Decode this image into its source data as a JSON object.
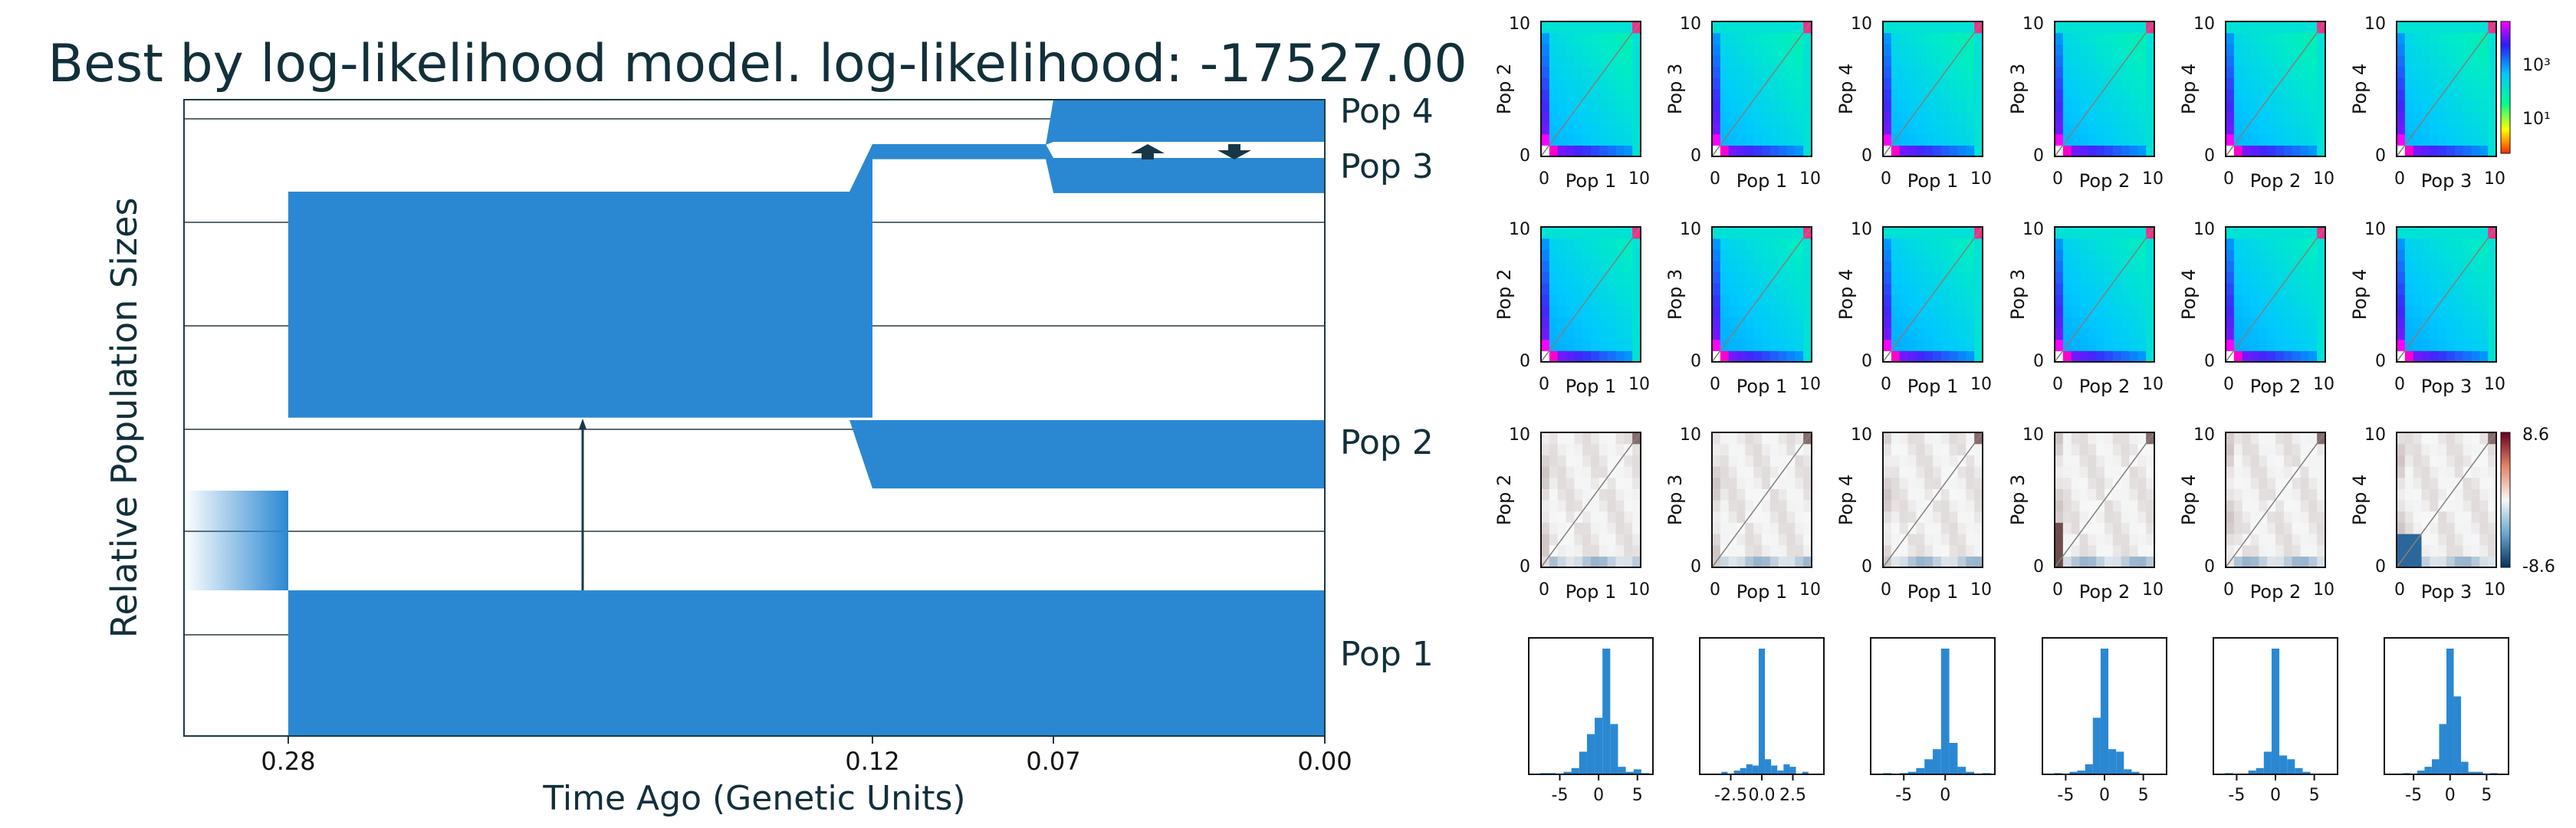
{
  "title": "Best by log-likelihood model. log-likelihood: -17527.00",
  "colors": {
    "pop_fill": "#2a88d2",
    "grid": "#5f6b6e",
    "frame": "#1d3a48",
    "arrow": "#163846",
    "title_text": "#12303a",
    "diag": "#a0a0a0"
  },
  "chart_data": [
    {
      "type": "area",
      "title": "Best by log-likelihood model. log-likelihood: -17527.00",
      "xlabel": "Time Ago (Genetic Units)",
      "ylabel": "Relative Population Sizes",
      "x_ticks": [
        0.28,
        0.12,
        0.07,
        0.0
      ],
      "x_tick_labels": [
        "0.28",
        "0.12",
        "0.07",
        "0.00"
      ],
      "x_direction": "reversed",
      "grid": "horizontal",
      "populations": [
        {
          "name": "Pop 1",
          "segments": [
            {
              "t_start": 0.28,
              "t_end": 0.0,
              "size": 1.45
            }
          ]
        },
        {
          "name": "Pop 2",
          "segments": [
            {
              "t_start": 0.28,
              "t_end": 0.12,
              "size": 0.05
            },
            {
              "t_start": 0.12,
              "t_end": 0.0,
              "size": 0.68
            }
          ]
        },
        {
          "name": "Pop 3",
          "segments": [
            {
              "t_start": 0.28,
              "t_end": 0.12,
              "size": 2.25
            },
            {
              "t_start": 0.12,
              "t_end": 0.07,
              "size": 0.15
            },
            {
              "t_start": 0.07,
              "t_end": 0.0,
              "size": 0.35
            }
          ]
        },
        {
          "name": "Pop 4",
          "segments": [
            {
              "t_start": 0.07,
              "t_end": 0.0,
              "size": 0.45
            }
          ]
        }
      ],
      "ancestral": {
        "t_start": 0.33,
        "t_end": 0.28,
        "size": 1.0
      },
      "migrations": [
        {
          "from": "Pop 1",
          "to": "Pop 2",
          "t_start": 0.28,
          "t_end": 0.12
        },
        {
          "from": "Pop 3",
          "to": "Pop 4",
          "t_start": 0.07,
          "t_end": 0.0
        },
        {
          "from": "Pop 4",
          "to": "Pop 3",
          "t_start": 0.07,
          "t_end": 0.0
        }
      ]
    },
    {
      "type": "heatmap",
      "name": "observed sfs",
      "panels": [
        {
          "xlabel": "Pop 1",
          "ylabel": "Pop 2"
        },
        {
          "xlabel": "Pop 1",
          "ylabel": "Pop 3"
        },
        {
          "xlabel": "Pop 1",
          "ylabel": "Pop 4"
        },
        {
          "xlabel": "Pop 2",
          "ylabel": "Pop 3"
        },
        {
          "xlabel": "Pop 2",
          "ylabel": "Pop 4"
        },
        {
          "xlabel": "Pop 3",
          "ylabel": "Pop 4"
        }
      ],
      "axis_range": [
        0,
        10
      ],
      "tick_labels": [
        "0",
        "10"
      ],
      "colorbar": {
        "scale": "log",
        "tick_labels": [
          "10³",
          "10¹"
        ]
      }
    },
    {
      "type": "heatmap",
      "name": "model sfs",
      "panels": [
        {
          "xlabel": "Pop 1",
          "ylabel": "Pop 2"
        },
        {
          "xlabel": "Pop 1",
          "ylabel": "Pop 3"
        },
        {
          "xlabel": "Pop 1",
          "ylabel": "Pop 4"
        },
        {
          "xlabel": "Pop 2",
          "ylabel": "Pop 3"
        },
        {
          "xlabel": "Pop 2",
          "ylabel": "Pop 4"
        },
        {
          "xlabel": "Pop 3",
          "ylabel": "Pop 4"
        }
      ],
      "axis_range": [
        0,
        10
      ],
      "tick_labels": [
        "0",
        "10"
      ]
    },
    {
      "type": "heatmap",
      "name": "residuals",
      "panels": [
        {
          "xlabel": "Pop 1",
          "ylabel": "Pop 2"
        },
        {
          "xlabel": "Pop 1",
          "ylabel": "Pop 3"
        },
        {
          "xlabel": "Pop 1",
          "ylabel": "Pop 4"
        },
        {
          "xlabel": "Pop 2",
          "ylabel": "Pop 3"
        },
        {
          "xlabel": "Pop 2",
          "ylabel": "Pop 4"
        },
        {
          "xlabel": "Pop 3",
          "ylabel": "Pop 4"
        }
      ],
      "axis_range": [
        0,
        10
      ],
      "tick_labels": [
        "0",
        "10"
      ],
      "colorbar": {
        "scale": "linear",
        "range": [
          -8.6,
          8.6
        ],
        "tick_labels": [
          "8.6",
          "-8.6"
        ]
      }
    },
    {
      "type": "bar",
      "name": "residual histograms",
      "panels": [
        {
          "ticks": [
            "-5",
            "0",
            "5"
          ],
          "xlim": [
            -9,
            7
          ],
          "bins": [
            [
              -7,
              0.01
            ],
            [
              -6,
              0.01
            ],
            [
              -4,
              0.02
            ],
            [
              -3,
              0.05
            ],
            [
              -2,
              0.18
            ],
            [
              -1,
              0.32
            ],
            [
              0,
              0.45
            ],
            [
              1,
              1.0
            ],
            [
              2,
              0.4
            ],
            [
              3,
              0.06
            ],
            [
              4,
              0.02
            ],
            [
              5,
              0.04
            ],
            [
              6,
              0.01
            ]
          ]
        },
        {
          "ticks": [
            "-2.5",
            "0.0",
            "2.5"
          ],
          "xlim": [
            -5,
            5
          ],
          "bins": [
            [
              -3.0,
              0.02
            ],
            [
              -2.0,
              0.03
            ],
            [
              -1.5,
              0.05
            ],
            [
              -1.0,
              0.08
            ],
            [
              -0.5,
              0.07
            ],
            [
              0.0,
              1.0
            ],
            [
              0.5,
              0.12
            ],
            [
              1.0,
              0.07
            ],
            [
              1.5,
              0.03
            ],
            [
              2.0,
              0.08
            ],
            [
              2.5,
              0.06
            ],
            [
              3.5,
              0.02
            ]
          ]
        },
        {
          "ticks": [
            "-5",
            "0"
          ],
          "xlim": [
            -9,
            6
          ],
          "bins": [
            [
              -7,
              0.01
            ],
            [
              -5,
              0.01
            ],
            [
              -4,
              0.02
            ],
            [
              -3,
              0.05
            ],
            [
              -2,
              0.12
            ],
            [
              -1,
              0.2
            ],
            [
              0,
              1.0
            ],
            [
              1,
              0.25
            ],
            [
              2,
              0.06
            ],
            [
              3,
              0.02
            ],
            [
              5,
              0.01
            ]
          ]
        },
        {
          "ticks": [
            "-5",
            "0",
            "5"
          ],
          "xlim": [
            -8,
            8
          ],
          "bins": [
            [
              -6,
              0.01
            ],
            [
              -4,
              0.02
            ],
            [
              -3,
              0.03
            ],
            [
              -2,
              0.08
            ],
            [
              -1,
              0.45
            ],
            [
              0,
              1.0
            ],
            [
              1,
              0.2
            ],
            [
              2,
              0.18
            ],
            [
              3,
              0.04
            ],
            [
              4,
              0.02
            ]
          ]
        },
        {
          "ticks": [
            "-5",
            "0",
            "5"
          ],
          "xlim": [
            -8,
            8
          ],
          "bins": [
            [
              -6,
              0.01
            ],
            [
              -3,
              0.03
            ],
            [
              -2,
              0.05
            ],
            [
              -1,
              0.18
            ],
            [
              0,
              1.0
            ],
            [
              1,
              0.15
            ],
            [
              2,
              0.12
            ],
            [
              3,
              0.05
            ],
            [
              4,
              0.02
            ]
          ]
        },
        {
          "ticks": [
            "-5",
            "0",
            "5"
          ],
          "xlim": [
            -9,
            8
          ],
          "bins": [
            [
              -6,
              0.01
            ],
            [
              -4,
              0.03
            ],
            [
              -3,
              0.06
            ],
            [
              -2,
              0.12
            ],
            [
              -1,
              0.4
            ],
            [
              0,
              1.0
            ],
            [
              1,
              0.62
            ],
            [
              2,
              0.1
            ],
            [
              3,
              0.02
            ],
            [
              4,
              0.02
            ],
            [
              6,
              0.01
            ]
          ]
        }
      ]
    }
  ]
}
